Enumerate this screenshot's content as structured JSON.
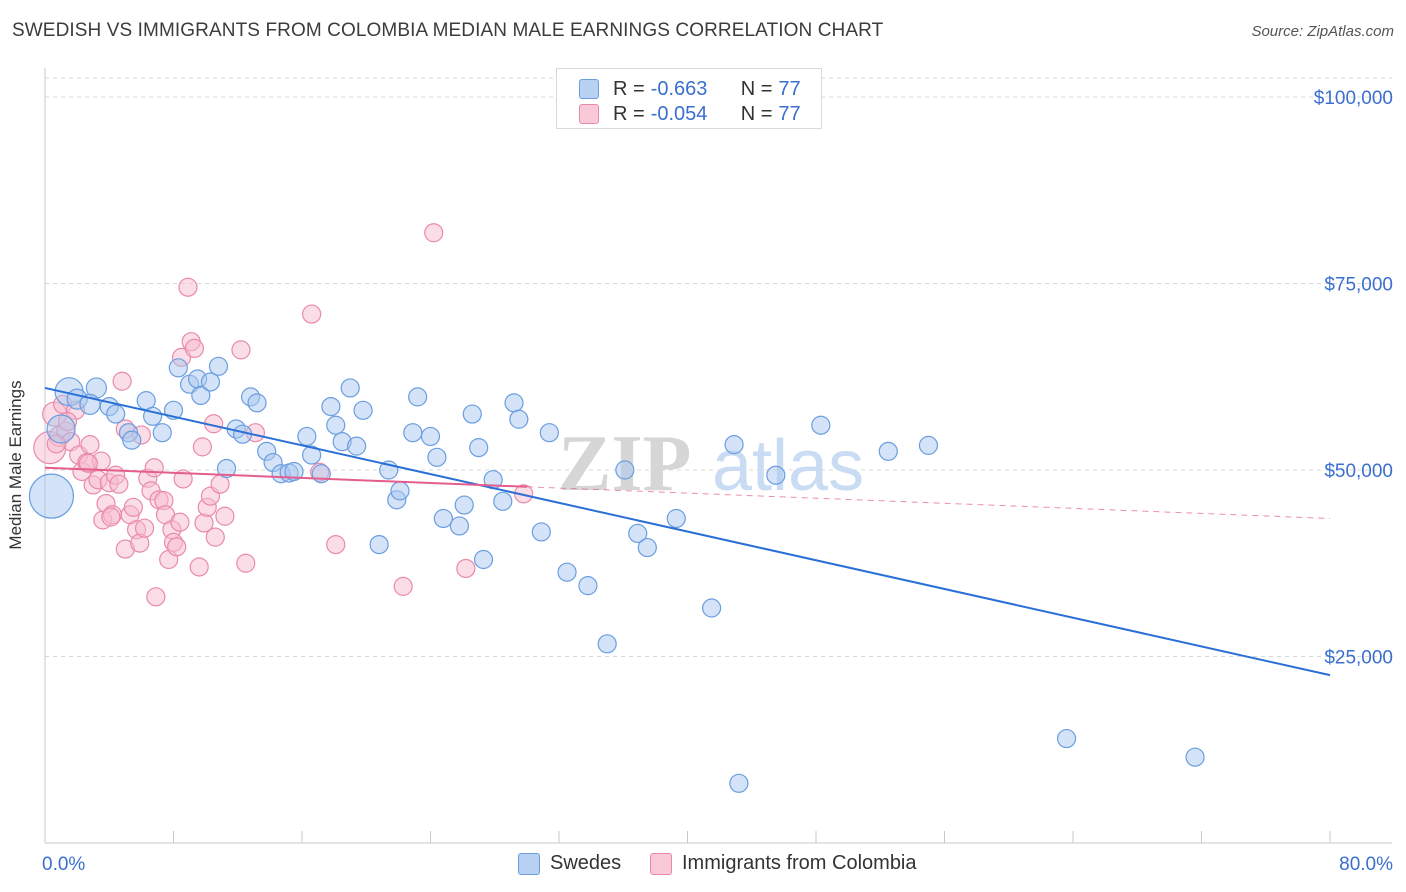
{
  "title": "SWEDISH VS IMMIGRANTS FROM COLOMBIA MEDIAN MALE EARNINGS CORRELATION CHART",
  "source": "Source: ZipAtlas.com",
  "watermark": {
    "zip": "ZIP",
    "atlas": "atlas"
  },
  "colors": {
    "blue_fill": "#a9c8f0",
    "blue_stroke": "#6a9ee0",
    "blue_line": "#2a6fd6",
    "pink_fill": "#f7bcd0",
    "pink_stroke": "#e98aaa",
    "pink_line": "#e35e8d",
    "axis_text": "#3a6fd0",
    "grid": "#d8d8d8"
  },
  "legend_top": {
    "rows": [
      {
        "series": "blue",
        "r_label": "R =",
        "r_value": "-0.663",
        "n_label": "N =",
        "n_value": "77"
      },
      {
        "series": "pink",
        "r_label": "R =",
        "r_value": "-0.054",
        "n_label": "N =",
        "n_value": "77"
      }
    ]
  },
  "legend_bottom": {
    "items": [
      {
        "series": "blue",
        "label": "Swedes"
      },
      {
        "series": "pink",
        "label": "Immigrants from Colombia"
      }
    ]
  },
  "chart_data": {
    "type": "scatter",
    "title": "SWEDISH VS IMMIGRANTS FROM COLOMBIA MEDIAN MALE EARNINGS CORRELATION CHART",
    "xlabel": "",
    "ylabel": "Median Male Earnings",
    "xlim": [
      0,
      80
    ],
    "ylim": [
      0,
      104000
    ],
    "x_tick_labels": [
      {
        "value": 0,
        "label": "0.0%"
      },
      {
        "value": 80,
        "label": "80.0%"
      }
    ],
    "y_ticks": [
      {
        "value": 25000,
        "label": "$25,000"
      },
      {
        "value": 50000,
        "label": "$50,000"
      },
      {
        "value": 75000,
        "label": "$75,000"
      },
      {
        "value": 100000,
        "label": "$100,000"
      }
    ],
    "x_minor_ticks": [
      8,
      16,
      24,
      32,
      40,
      48,
      56,
      64,
      72,
      80
    ],
    "series": [
      {
        "name": "Swedes",
        "color": "blue",
        "r": -0.663,
        "n": 77,
        "trend": {
          "x0": 0,
          "y0": 61000,
          "x1": 80,
          "y1": 22500,
          "dashed_after": null
        },
        "points": [
          [
            0.4,
            46500,
            22
          ],
          [
            1.5,
            60500,
            14
          ],
          [
            1.0,
            55500,
            14
          ],
          [
            2.0,
            59500,
            10
          ],
          [
            3.2,
            61000,
            10
          ],
          [
            2.8,
            58800,
            10
          ],
          [
            4.0,
            58500,
            9
          ],
          [
            4.4,
            57500,
            9
          ],
          [
            5.2,
            55000,
            9
          ],
          [
            5.4,
            54000,
            9
          ],
          [
            6.3,
            59300,
            9
          ],
          [
            6.7,
            57200,
            9
          ],
          [
            7.3,
            55000,
            9
          ],
          [
            8.0,
            58000,
            9
          ],
          [
            8.3,
            63700,
            9
          ],
          [
            9.0,
            61500,
            9
          ],
          [
            9.5,
            62200,
            9
          ],
          [
            9.7,
            60000,
            9
          ],
          [
            10.3,
            61800,
            9
          ],
          [
            10.8,
            63900,
            9
          ],
          [
            11.3,
            50200,
            9
          ],
          [
            11.9,
            55500,
            9
          ],
          [
            12.3,
            54800,
            9
          ],
          [
            12.8,
            59800,
            9
          ],
          [
            13.2,
            59000,
            9
          ],
          [
            13.8,
            52500,
            9
          ],
          [
            14.2,
            51000,
            9
          ],
          [
            14.7,
            49500,
            9
          ],
          [
            15.2,
            49600,
            9
          ],
          [
            15.5,
            49800,
            9
          ],
          [
            16.3,
            54500,
            9
          ],
          [
            16.6,
            52000,
            9
          ],
          [
            17.2,
            49500,
            9
          ],
          [
            17.8,
            58500,
            9
          ],
          [
            18.1,
            56000,
            9
          ],
          [
            18.5,
            53800,
            9
          ],
          [
            19.0,
            61000,
            9
          ],
          [
            19.4,
            53200,
            9
          ],
          [
            19.8,
            58000,
            9
          ],
          [
            20.8,
            40000,
            9
          ],
          [
            21.4,
            50000,
            9
          ],
          [
            21.9,
            46000,
            9
          ],
          [
            22.1,
            47200,
            9
          ],
          [
            22.9,
            55000,
            9
          ],
          [
            23.2,
            59800,
            9
          ],
          [
            24.0,
            54500,
            9
          ],
          [
            24.4,
            51700,
            9
          ],
          [
            24.8,
            43500,
            9
          ],
          [
            25.8,
            42500,
            9
          ],
          [
            26.1,
            45300,
            9
          ],
          [
            26.6,
            57500,
            9
          ],
          [
            27.0,
            53000,
            9
          ],
          [
            27.3,
            38000,
            9
          ],
          [
            27.9,
            48700,
            9
          ],
          [
            28.5,
            45800,
            9
          ],
          [
            29.2,
            59000,
            9
          ],
          [
            29.5,
            56800,
            9
          ],
          [
            30.9,
            41700,
            9
          ],
          [
            31.4,
            55000,
            9
          ],
          [
            32.5,
            36300,
            9
          ],
          [
            33.8,
            34500,
            9
          ],
          [
            35.0,
            26700,
            9
          ],
          [
            36.1,
            50000,
            9
          ],
          [
            36.9,
            41500,
            9
          ],
          [
            37.5,
            39600,
            9
          ],
          [
            39.3,
            43500,
            9
          ],
          [
            41.5,
            31500,
            9
          ],
          [
            42.9,
            53400,
            9
          ],
          [
            43.2,
            8000,
            9
          ],
          [
            45.5,
            49300,
            9
          ],
          [
            48.3,
            56000,
            9
          ],
          [
            52.5,
            52500,
            9
          ],
          [
            55.0,
            53300,
            9
          ],
          [
            63.6,
            14000,
            9
          ],
          [
            71.6,
            11500,
            9
          ]
        ]
      },
      {
        "name": "Immigrants from Colombia",
        "color": "pink",
        "r": -0.054,
        "n": 77,
        "trend": {
          "x0": 0,
          "y0": 50300,
          "x1": 80,
          "y1": 43500,
          "dashed_after": 30
        },
        "points": [
          [
            0.3,
            53000,
            16
          ],
          [
            0.6,
            57500,
            12
          ],
          [
            0.9,
            54500,
            10
          ],
          [
            1.1,
            58800,
            9
          ],
          [
            1.3,
            55200,
            9
          ],
          [
            1.6,
            53800,
            9
          ],
          [
            1.9,
            58000,
            9
          ],
          [
            2.1,
            52000,
            9
          ],
          [
            2.3,
            49800,
            9
          ],
          [
            2.6,
            51000,
            9
          ],
          [
            2.8,
            53400,
            9
          ],
          [
            3.0,
            48000,
            9
          ],
          [
            3.3,
            48700,
            9
          ],
          [
            3.5,
            51200,
            9
          ],
          [
            3.6,
            43300,
            9
          ],
          [
            3.8,
            45500,
            9
          ],
          [
            4.0,
            48300,
            9
          ],
          [
            4.2,
            44000,
            9
          ],
          [
            4.4,
            49300,
            9
          ],
          [
            4.6,
            48100,
            9
          ],
          [
            4.8,
            61900,
            9
          ],
          [
            5.0,
            55500,
            9
          ],
          [
            5.0,
            39400,
            9
          ],
          [
            5.3,
            44000,
            9
          ],
          [
            5.5,
            45000,
            9
          ],
          [
            5.7,
            42000,
            9
          ],
          [
            5.9,
            40200,
            9
          ],
          [
            6.0,
            54700,
            9
          ],
          [
            6.2,
            42200,
            9
          ],
          [
            6.4,
            48900,
            9
          ],
          [
            6.6,
            47200,
            9
          ],
          [
            6.8,
            50300,
            9
          ],
          [
            6.9,
            33000,
            9
          ],
          [
            7.1,
            46000,
            9
          ],
          [
            7.4,
            45900,
            9
          ],
          [
            7.5,
            44000,
            9
          ],
          [
            7.7,
            38000,
            9
          ],
          [
            7.9,
            42000,
            9
          ],
          [
            8.0,
            40300,
            9
          ],
          [
            8.2,
            39700,
            9
          ],
          [
            8.4,
            43000,
            9
          ],
          [
            8.5,
            65100,
            9
          ],
          [
            8.6,
            48800,
            9
          ],
          [
            8.9,
            74500,
            9
          ],
          [
            9.1,
            67200,
            9
          ],
          [
            9.3,
            66300,
            9
          ],
          [
            9.6,
            37000,
            9
          ],
          [
            9.8,
            53100,
            9
          ],
          [
            9.9,
            42900,
            9
          ],
          [
            10.1,
            45000,
            9
          ],
          [
            10.3,
            46500,
            9
          ],
          [
            10.5,
            56200,
            9
          ],
          [
            10.6,
            41000,
            9
          ],
          [
            10.9,
            48100,
            9
          ],
          [
            11.2,
            43800,
            9
          ],
          [
            12.2,
            66100,
            9
          ],
          [
            12.5,
            37500,
            9
          ],
          [
            13.1,
            55000,
            9
          ],
          [
            16.6,
            70900,
            9
          ],
          [
            17.1,
            49700,
            9
          ],
          [
            18.1,
            40000,
            9
          ],
          [
            22.3,
            34400,
            9
          ],
          [
            24.2,
            81800,
            9
          ],
          [
            26.2,
            36800,
            9
          ],
          [
            29.8,
            46800,
            9
          ],
          [
            4.1,
            43700,
            9
          ],
          [
            2.7,
            50900,
            9
          ],
          [
            1.4,
            56500,
            9
          ],
          [
            0.7,
            53500,
            9
          ]
        ]
      }
    ]
  }
}
